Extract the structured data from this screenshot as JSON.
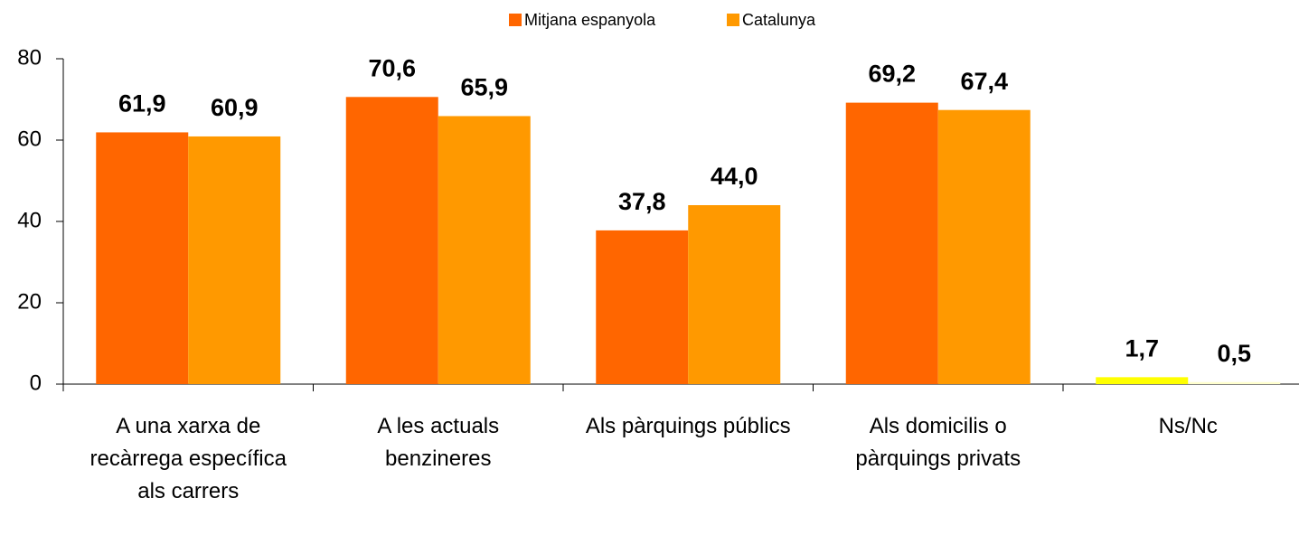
{
  "chart_data": {
    "type": "bar",
    "categories": [
      "A una xarxa de recàrrega específica als carrers",
      "A les actuals benzineres",
      "Als pàrquings públics",
      "Als domicilis o pàrquings privats",
      "Ns/Nc"
    ],
    "series": [
      {
        "name": "Mitjana espanyola",
        "color": "#FF6600",
        "colors": [
          "#FF6600",
          "#FF6600",
          "#FF6600",
          "#FF6600",
          "#FFFF00"
        ],
        "values": [
          61.9,
          70.6,
          37.8,
          69.2,
          1.7
        ],
        "value_labels": [
          "61,9",
          "70,6",
          "37,8",
          "69,2",
          "1,7"
        ]
      },
      {
        "name": "Catalunya",
        "color": "#FF9900",
        "colors": [
          "#FF9900",
          "#FF9900",
          "#FF9900",
          "#FF9900",
          "#FFFFCC"
        ],
        "values": [
          60.9,
          65.9,
          44.0,
          67.4,
          0.5
        ],
        "value_labels": [
          "60,9",
          "65,9",
          "44,0",
          "67,4",
          "0,5"
        ]
      }
    ],
    "ylim": [
      0,
      80
    ],
    "yticks": [
      0,
      20,
      40,
      60,
      80
    ],
    "grid": false,
    "legend": "top"
  }
}
